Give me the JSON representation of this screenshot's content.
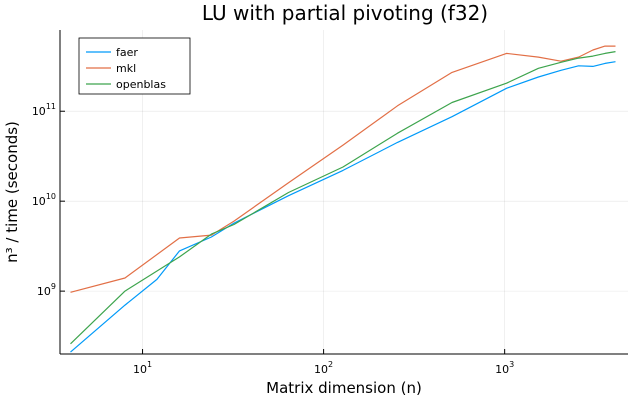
{
  "chart_data": {
    "type": "line",
    "title": "LU with partial pivoting (f32)",
    "xlabel": "Matrix dimension (n)",
    "ylabel": "n³ / time (seconds)",
    "x_scale": "log",
    "y_scale": "log",
    "xlim": [
      3.5,
      4800
    ],
    "ylim": [
      200000000,
      800000000000
    ],
    "grid": true,
    "legend_position": "top-left",
    "x_ticks": [
      {
        "value": 10,
        "base": "10",
        "exp": "1"
      },
      {
        "value": 100,
        "base": "10",
        "exp": "2"
      },
      {
        "value": 1000,
        "base": "10",
        "exp": "3"
      }
    ],
    "y_ticks": [
      {
        "value": 1000000000,
        "base": "10",
        "exp": "9"
      },
      {
        "value": 10000000000,
        "base": "10",
        "exp": "10"
      },
      {
        "value": 100000000000,
        "base": "10",
        "exp": "11"
      }
    ],
    "series": [
      {
        "name": "faer",
        "color": "#009af9",
        "x": [
          4,
          8,
          12,
          16,
          24,
          32,
          64,
          128,
          256,
          512,
          1024,
          1536,
          2048,
          2560,
          3072,
          3584,
          4096
        ],
        "y": [
          210000000,
          700000000,
          1350000000,
          2800000000,
          4000000000,
          5700000000,
          11500000000,
          22000000000,
          45000000000,
          87000000000,
          180000000000,
          240000000000,
          285000000000,
          320000000000,
          315000000000,
          340000000000,
          355000000000
        ]
      },
      {
        "name": "mkl",
        "color": "#e26f46",
        "x": [
          4,
          8,
          16,
          24,
          32,
          64,
          128,
          256,
          512,
          1024,
          1536,
          2048,
          2560,
          3072,
          3584,
          4096
        ],
        "y": [
          970000000,
          1400000000,
          3900000000,
          4200000000,
          6000000000,
          16000000000,
          42000000000,
          115000000000,
          270000000000,
          440000000000,
          400000000000,
          360000000000,
          400000000000,
          480000000000,
          530000000000,
          530000000000
        ]
      },
      {
        "name": "openblas",
        "color": "#3da44d",
        "x": [
          4,
          8,
          16,
          24,
          32,
          64,
          128,
          256,
          512,
          1024,
          1536,
          2048,
          2560,
          3072,
          3584,
          4096
        ],
        "y": [
          260000000,
          1000000000,
          2400000000,
          4300000000,
          5500000000,
          12500000000,
          24000000000,
          57000000000,
          125000000000,
          205000000000,
          300000000000,
          350000000000,
          390000000000,
          410000000000,
          440000000000,
          460000000000
        ]
      }
    ]
  }
}
